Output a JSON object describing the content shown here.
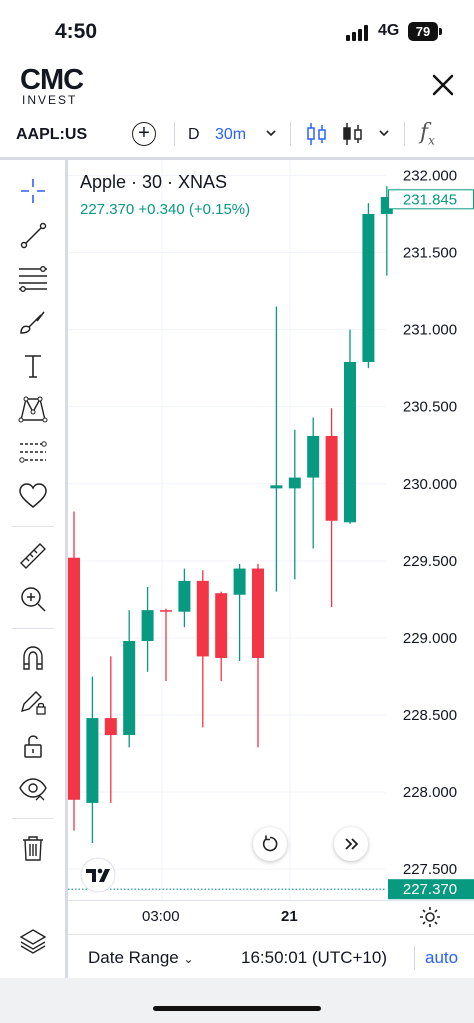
{
  "status_bar": {
    "time": "4:50",
    "network": "4G",
    "battery": "79"
  },
  "app": {
    "logo_main": "CMC",
    "logo_sub": "INVEST"
  },
  "toolbar": {
    "symbol": "AAPL:US",
    "interval_period": "D",
    "interval": "30m",
    "indicators_symbol": "f",
    "indicators_sub": "x"
  },
  "legend": {
    "title": "Apple · 30 · XNAS",
    "values": "227.370 +0.340 (+0.15%)"
  },
  "chart_data": {
    "type": "candlestick",
    "title": "Apple · 30 · XNAS",
    "y_ticks": [
      "232.000",
      "231.500",
      "231.000",
      "230.500",
      "230.000",
      "229.500",
      "229.000",
      "228.500",
      "228.000",
      "227.500"
    ],
    "ylim": [
      227.3,
      232.1
    ],
    "x_ticks": [
      "03:00",
      "21"
    ],
    "last_price": "231.845",
    "last_price_color": "#089981",
    "reference_price": "227.370",
    "reference_color": "#089981",
    "up_color": "#089981",
    "down_color": "#f23645",
    "candles": [
      {
        "o": 229.52,
        "h": 229.82,
        "l": 227.75,
        "c": 227.95
      },
      {
        "o": 227.93,
        "h": 228.75,
        "l": 227.67,
        "c": 228.48
      },
      {
        "o": 228.48,
        "h": 228.88,
        "l": 227.93,
        "c": 228.37
      },
      {
        "o": 228.37,
        "h": 229.18,
        "l": 228.29,
        "c": 228.98
      },
      {
        "o": 228.98,
        "h": 229.33,
        "l": 228.78,
        "c": 229.18
      },
      {
        "o": 229.18,
        "h": 229.19,
        "l": 228.72,
        "c": 229.17
      },
      {
        "o": 229.17,
        "h": 229.45,
        "l": 229.07,
        "c": 229.37
      },
      {
        "o": 229.37,
        "h": 229.44,
        "l": 228.42,
        "c": 228.88
      },
      {
        "o": 229.29,
        "h": 229.3,
        "l": 228.72,
        "c": 228.87
      },
      {
        "o": 229.28,
        "h": 229.48,
        "l": 228.85,
        "c": 229.45
      },
      {
        "o": 229.45,
        "h": 229.48,
        "l": 228.29,
        "c": 228.87
      },
      {
        "o": 229.97,
        "h": 231.15,
        "l": 229.3,
        "c": 229.99
      },
      {
        "o": 229.97,
        "h": 230.35,
        "l": 229.38,
        "c": 230.04
      },
      {
        "o": 230.04,
        "h": 230.43,
        "l": 229.58,
        "c": 230.31
      },
      {
        "o": 230.31,
        "h": 230.49,
        "l": 229.2,
        "c": 229.76
      },
      {
        "o": 229.75,
        "h": 231.0,
        "l": 229.74,
        "c": 230.79
      },
      {
        "o": 230.79,
        "h": 231.82,
        "l": 230.75,
        "c": 231.75
      },
      {
        "o": 231.75,
        "h": 231.93,
        "l": 231.35,
        "c": 231.86
      }
    ]
  },
  "bottom": {
    "date_range": "Date Range",
    "clock": "16:50:01 (UTC+10)",
    "auto": "auto"
  }
}
